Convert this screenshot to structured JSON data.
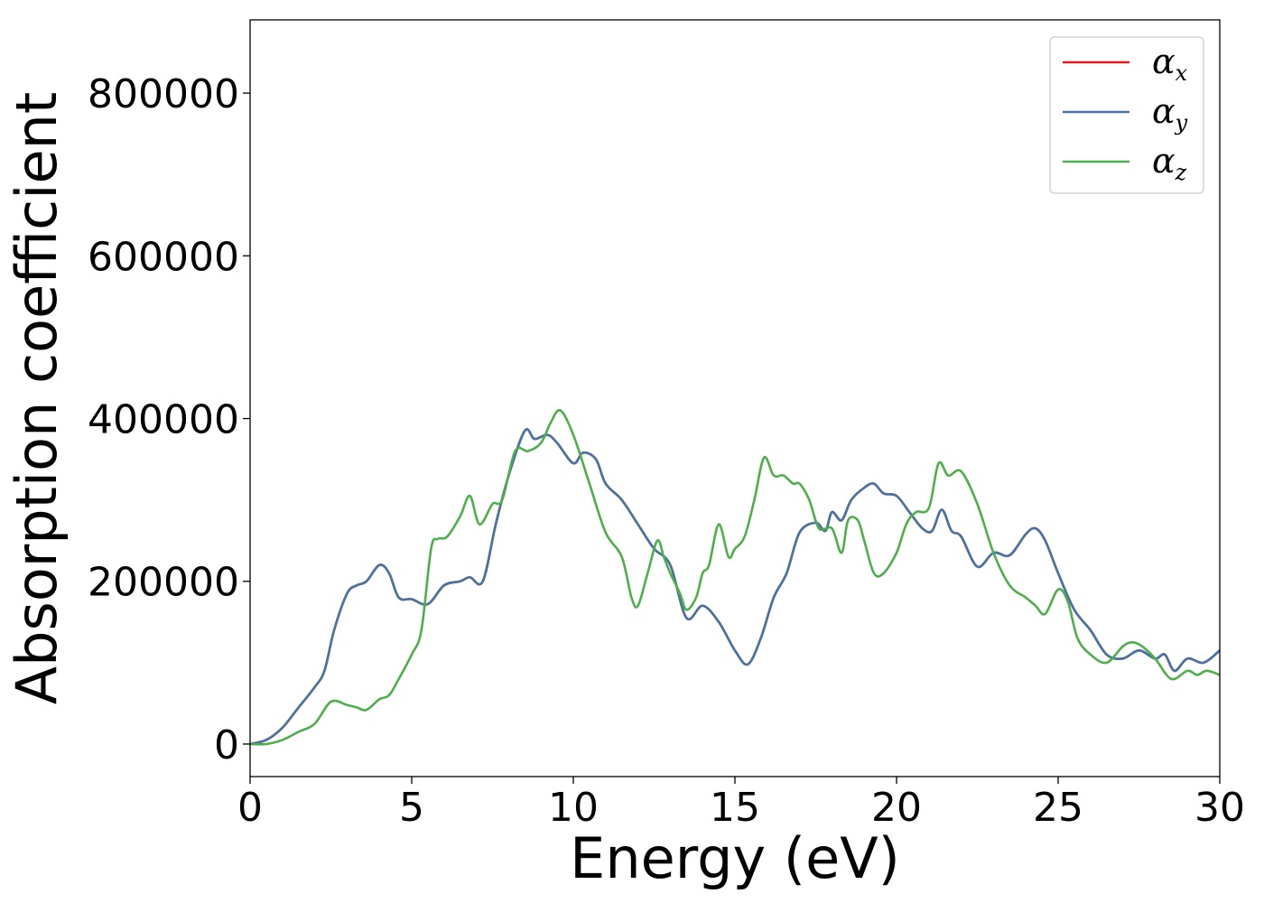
{
  "chart_data": {
    "type": "line",
    "xlabel": "Energy (eV)",
    "ylabel": "Absorption coefficient",
    "xlim": [
      0,
      30
    ],
    "ylim": [
      -40000,
      890000
    ],
    "xticks": [
      0,
      5,
      10,
      15,
      20,
      25,
      30
    ],
    "yticks": [
      0,
      200000,
      400000,
      600000,
      800000
    ],
    "grid": false,
    "legend_position": "top-right",
    "series": [
      {
        "name": "α",
        "subscript": "x",
        "color": "#e41a1c",
        "x": [
          0,
          0.5,
          1.0,
          1.5,
          2.0,
          2.3,
          2.6,
          3.0,
          3.3,
          3.6,
          4.0,
          4.3,
          4.6,
          5.0,
          5.5,
          6.0,
          6.5,
          6.8,
          7.2,
          7.6,
          8.0,
          8.5,
          8.8,
          9.2,
          9.5,
          10.0,
          10.3,
          10.7,
          11.0,
          11.5,
          12.0,
          12.5,
          13.0,
          13.5,
          14.0,
          14.5,
          15.0,
          15.4,
          15.8,
          16.2,
          16.6,
          17.0,
          17.5,
          17.8,
          18.0,
          18.3,
          18.6,
          19.0,
          19.3,
          19.6,
          20.0,
          20.4,
          20.8,
          21.1,
          21.4,
          21.7,
          22.0,
          22.5,
          23.0,
          23.5,
          24.0,
          24.3,
          24.6,
          25.0,
          25.5,
          26.0,
          26.5,
          27.0,
          27.5,
          28.0,
          28.3,
          28.6,
          29.0,
          29.5,
          30.0
        ],
        "values": [
          0,
          5000,
          20000,
          45000,
          70000,
          90000,
          140000,
          185000,
          195000,
          200000,
          220000,
          210000,
          180000,
          178000,
          172000,
          195000,
          200000,
          205000,
          200000,
          270000,
          330000,
          385000,
          375000,
          380000,
          370000,
          345000,
          358000,
          350000,
          320000,
          300000,
          270000,
          240000,
          220000,
          155000,
          170000,
          150000,
          115000,
          98000,
          130000,
          180000,
          210000,
          260000,
          272000,
          262000,
          285000,
          275000,
          300000,
          315000,
          320000,
          308000,
          305000,
          285000,
          265000,
          262000,
          288000,
          262000,
          255000,
          218000,
          235000,
          232000,
          258000,
          265000,
          250000,
          210000,
          165000,
          140000,
          110000,
          105000,
          115000,
          105000,
          110000,
          90000,
          105000,
          100000,
          115000
        ]
      },
      {
        "name": "α",
        "subscript": "y",
        "color": "#4574a6",
        "x": [
          0,
          0.5,
          1.0,
          1.5,
          2.0,
          2.3,
          2.6,
          3.0,
          3.3,
          3.6,
          4.0,
          4.3,
          4.6,
          5.0,
          5.5,
          6.0,
          6.5,
          6.8,
          7.2,
          7.6,
          8.0,
          8.5,
          8.8,
          9.2,
          9.5,
          10.0,
          10.3,
          10.7,
          11.0,
          11.5,
          12.0,
          12.5,
          13.0,
          13.5,
          14.0,
          14.5,
          15.0,
          15.4,
          15.8,
          16.2,
          16.6,
          17.0,
          17.5,
          17.8,
          18.0,
          18.3,
          18.6,
          19.0,
          19.3,
          19.6,
          20.0,
          20.4,
          20.8,
          21.1,
          21.4,
          21.7,
          22.0,
          22.5,
          23.0,
          23.5,
          24.0,
          24.3,
          24.6,
          25.0,
          25.5,
          26.0,
          26.5,
          27.0,
          27.5,
          28.0,
          28.3,
          28.6,
          29.0,
          29.5,
          30.0
        ],
        "values": [
          0,
          5000,
          20000,
          45000,
          70000,
          90000,
          140000,
          185000,
          195000,
          200000,
          220000,
          210000,
          180000,
          178000,
          172000,
          195000,
          200000,
          205000,
          200000,
          270000,
          330000,
          385000,
          375000,
          380000,
          370000,
          345000,
          358000,
          350000,
          320000,
          300000,
          270000,
          240000,
          220000,
          155000,
          170000,
          150000,
          115000,
          98000,
          130000,
          180000,
          210000,
          260000,
          272000,
          262000,
          285000,
          275000,
          300000,
          315000,
          320000,
          308000,
          305000,
          285000,
          265000,
          262000,
          288000,
          262000,
          255000,
          218000,
          235000,
          232000,
          258000,
          265000,
          250000,
          210000,
          165000,
          140000,
          110000,
          105000,
          115000,
          105000,
          110000,
          90000,
          105000,
          100000,
          115000
        ]
      },
      {
        "name": "α",
        "subscript": "z",
        "color": "#4daf4a",
        "x": [
          0,
          0.5,
          1.0,
          1.5,
          2.0,
          2.5,
          3.0,
          3.3,
          3.6,
          4.0,
          4.3,
          4.6,
          5.0,
          5.3,
          5.6,
          5.8,
          6.1,
          6.5,
          6.8,
          7.1,
          7.5,
          7.8,
          8.2,
          8.6,
          9.0,
          9.3,
          9.6,
          10.0,
          10.5,
          11.0,
          11.5,
          11.8,
          12.0,
          12.3,
          12.6,
          12.8,
          13.0,
          13.3,
          13.5,
          13.8,
          14.0,
          14.2,
          14.5,
          14.8,
          15.0,
          15.3,
          15.6,
          15.9,
          16.2,
          16.5,
          16.8,
          17.0,
          17.3,
          17.6,
          18.0,
          18.3,
          18.5,
          18.8,
          19.0,
          19.3,
          19.6,
          20.0,
          20.3,
          20.6,
          21.0,
          21.3,
          21.6,
          22.0,
          22.5,
          23.0,
          23.5,
          24.0,
          24.3,
          24.6,
          25.0,
          25.3,
          25.6,
          26.0,
          26.5,
          27.0,
          27.3,
          27.6,
          28.0,
          28.5,
          29.0,
          29.3,
          29.6,
          30.0
        ],
        "values": [
          0,
          0,
          5000,
          15000,
          25000,
          52000,
          48000,
          45000,
          42000,
          55000,
          60000,
          80000,
          110000,
          140000,
          240000,
          252000,
          255000,
          280000,
          305000,
          270000,
          295000,
          300000,
          360000,
          360000,
          370000,
          395000,
          410000,
          380000,
          320000,
          260000,
          230000,
          180000,
          170000,
          210000,
          250000,
          230000,
          210000,
          185000,
          165000,
          180000,
          210000,
          220000,
          270000,
          230000,
          240000,
          255000,
          300000,
          352000,
          330000,
          330000,
          320000,
          320000,
          300000,
          265000,
          265000,
          235000,
          275000,
          275000,
          250000,
          210000,
          210000,
          235000,
          270000,
          285000,
          290000,
          345000,
          330000,
          335000,
          295000,
          235000,
          195000,
          180000,
          170000,
          160000,
          190000,
          175000,
          130000,
          110000,
          100000,
          120000,
          125000,
          120000,
          105000,
          80000,
          90000,
          85000,
          90000,
          85000
        ]
      }
    ]
  }
}
